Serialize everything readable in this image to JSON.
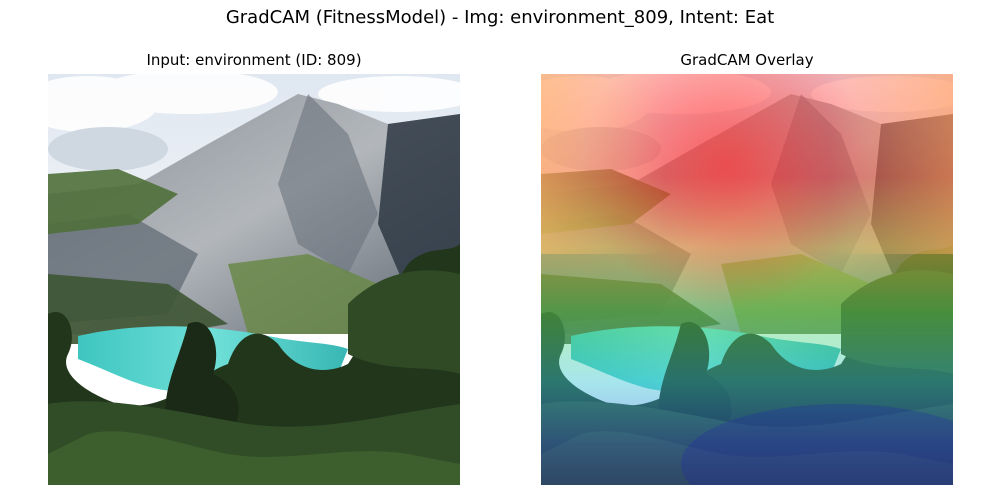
{
  "figure": {
    "suptitle": "GradCAM (FitnessModel) - Img: environment_809, Intent: Eat"
  },
  "panels": [
    {
      "title": "Input: environment (ID: 809)",
      "kind": "photo"
    },
    {
      "title": "GradCAM Overlay",
      "kind": "heatmap-overlay"
    }
  ],
  "scene": {
    "sky_color": "#eef2f7",
    "cloud_color": "#ffffff",
    "mountain_rock_color": "#9aa0a8",
    "mountain_shadow_color": "#3c4650",
    "slope_green_color": "#5f7d45",
    "lake_color": "#4ed3cc",
    "forest_color": "#22361c"
  },
  "heatmap": {
    "colormap": "jet",
    "opacity": 0.45
  }
}
